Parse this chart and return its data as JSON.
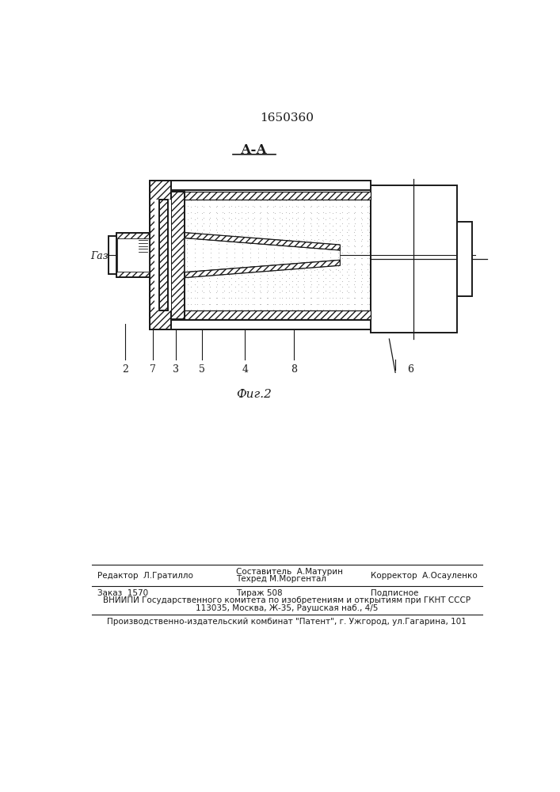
{
  "patent_number": "1650360",
  "section_label": "А-А",
  "figure_label": "Фиг.2",
  "gas_label": "Газ",
  "footer": {
    "editor": "Редактор  Л.Гратилло",
    "composer": "Составитель  А.Матурин",
    "techred": "Техред М.Моргентал",
    "corrector": "Корректор  А.Осауленко",
    "order": "Заказ  1570",
    "print_run": "Тираж 508",
    "signed": "Подписное",
    "vniiipi": "ВНИИПИ Государственного комитета по изобретениям и открытиям при ГКНТ СССР",
    "address": "113035, Москва, Ж-35, Раушская наб., 4/5",
    "production": "Производственно-издательский комбинат \"Патент\", г. Ужгород, ул.Гагарина, 101"
  },
  "bg_color": "#ffffff",
  "line_color": "#1a1a1a"
}
